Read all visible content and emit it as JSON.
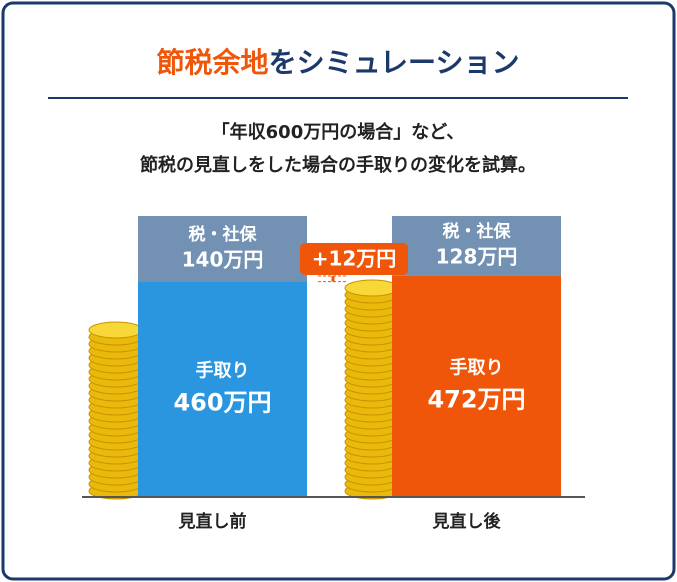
{
  "chart_data": {
    "type": "stacked_bar",
    "title": {
      "highlight": "節税余地",
      "rest": "をシミュレーション"
    },
    "subtitle": [
      "「年収600万円の場合」など、",
      "節税の見直しをした場合の手取りの変化を試算。"
    ],
    "categories": [
      "見直し前",
      "見直し後"
    ],
    "series": [
      {
        "name": "手取り",
        "values": [
          460,
          472
        ],
        "value_labels": [
          "460万円",
          "472万円"
        ],
        "colors": [
          "#2a96e0",
          "#f0560a"
        ]
      },
      {
        "name": "税・社保",
        "values": [
          140,
          128
        ],
        "value_labels": [
          "140万円",
          "128万円"
        ],
        "color": "#7391b3"
      }
    ],
    "annotation": "+12万円",
    "annotation_color": "#f0560a"
  }
}
